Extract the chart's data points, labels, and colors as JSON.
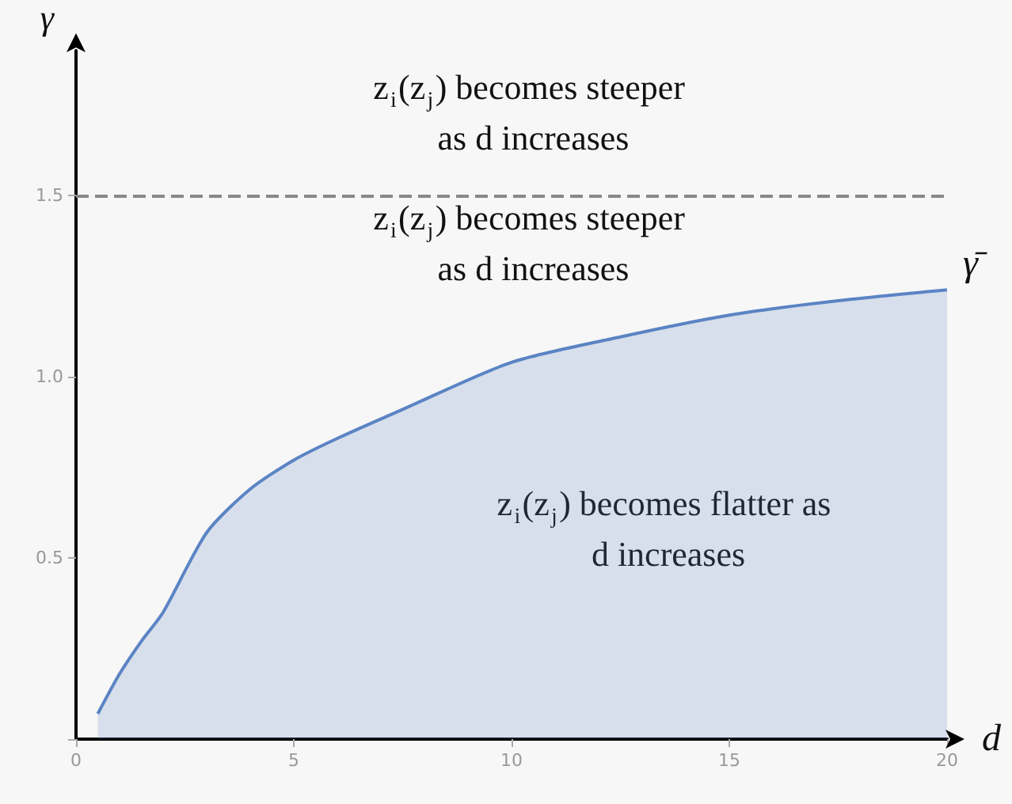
{
  "chart_data": {
    "type": "area",
    "xlabel": "d",
    "ylabel": "γ",
    "x": [
      0.5,
      1,
      1.5,
      2,
      3,
      4,
      5,
      6,
      7.5,
      10,
      12.5,
      15,
      17.5,
      20
    ],
    "series": [
      {
        "color": "#5b84c4",
        "values": [
          0.07,
          0.18,
          0.27,
          0.35,
          0.57,
          0.69,
          0.77,
          0.83,
          0.91,
          1.04,
          1.11,
          1.17,
          1.21,
          1.24
        ]
      }
    ],
    "xlim": [
      0,
      20
    ],
    "xticks": [
      0,
      5,
      10,
      15,
      20
    ],
    "ylim": [
      0,
      1.9
    ],
    "yticks": [
      {
        "value": 0,
        "label": null
      },
      {
        "value": 0.5,
        "label": "0.5"
      },
      {
        "value": 1,
        "label": "1.0"
      },
      {
        "value": 1.5,
        "label": "1.5"
      }
    ],
    "ref_lines": [
      {
        "axis": "y",
        "value": 1.5,
        "color": "#888888",
        "line_style": "dashed"
      }
    ],
    "annotations": [
      "z$_{i}$(z$_{j}$) becomes steeper as d increases",
      "z$_{i}$(z$_{j}$) becomes steeper as d increases",
      "z$_{i}$(z$_{j}$) becomes flatter as d increases",
      {
        "text": "γ̄",
        "x": 20,
        "y": 1.24
      }
    ],
    "grid": false,
    "marker": "none",
    "line_style": "solid"
  }
}
